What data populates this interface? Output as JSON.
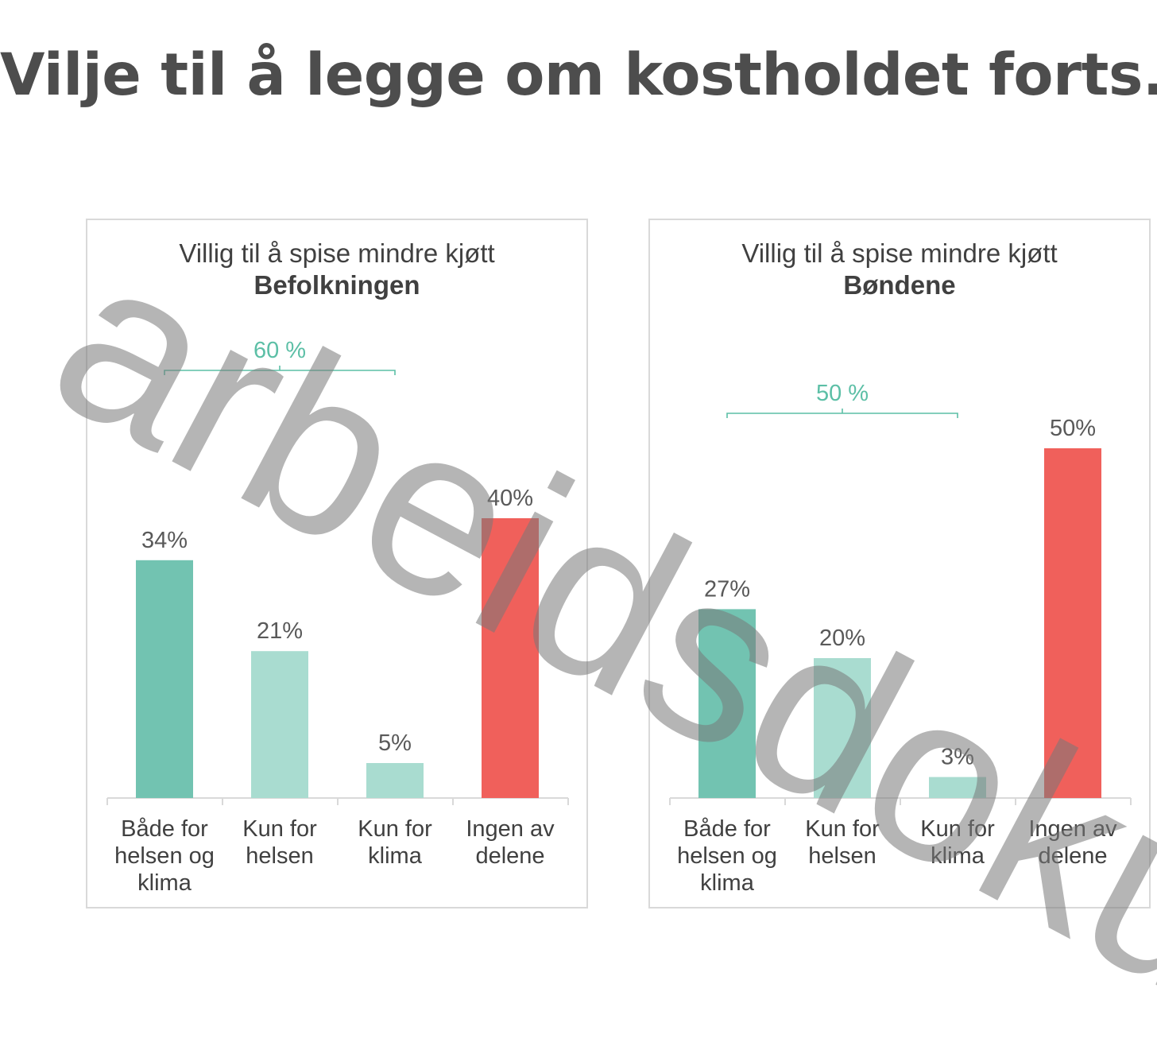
{
  "title": "Vilje til å legge om kostholdet forts.",
  "watermark": "arbeidsdoku",
  "colors": {
    "both": "#72c3b1",
    "single": "#a9dcd0",
    "none": "#f0605b",
    "bracket": "#5cbfa6",
    "label": "#595959",
    "axis": "#d9d9d9"
  },
  "chart_data": [
    {
      "type": "bar",
      "title": "Villig til å spise mindre kjøtt",
      "subtitle": "Befolkningen",
      "categories": [
        "Både for helsen og klima",
        "Kun for helsen",
        "Kun for klima",
        "Ingen av delene"
      ],
      "category_lines": [
        [
          "Både for",
          "helsen og",
          "klima"
        ],
        [
          "Kun for",
          "helsen"
        ],
        [
          "Kun for",
          "klima"
        ],
        [
          "Ingen av",
          "delene"
        ]
      ],
      "values": [
        34,
        21,
        5,
        40
      ],
      "value_labels": [
        "34%",
        "21%",
        "5%",
        "40%"
      ],
      "bracket": {
        "from": 0,
        "to": 2,
        "label": "60 %"
      },
      "ylim": [
        0,
        40
      ],
      "grid": false,
      "legend": "none"
    },
    {
      "type": "bar",
      "title": "Villig til å spise mindre kjøtt",
      "subtitle": "Bøndene",
      "categories": [
        "Både for helsen og klima",
        "Kun for helsen",
        "Kun for klima",
        "Ingen av delene"
      ],
      "category_lines": [
        [
          "Både for",
          "helsen og",
          "klima"
        ],
        [
          "Kun for",
          "helsen"
        ],
        [
          "Kun for",
          "klima"
        ],
        [
          "Ingen av",
          "delene"
        ]
      ],
      "values": [
        27,
        20,
        3,
        50
      ],
      "value_labels": [
        "27%",
        "20%",
        "3%",
        "50%"
      ],
      "bracket": {
        "from": 0,
        "to": 2,
        "label": "50 %"
      },
      "ylim": [
        0,
        50
      ],
      "grid": false,
      "legend": "none"
    }
  ]
}
